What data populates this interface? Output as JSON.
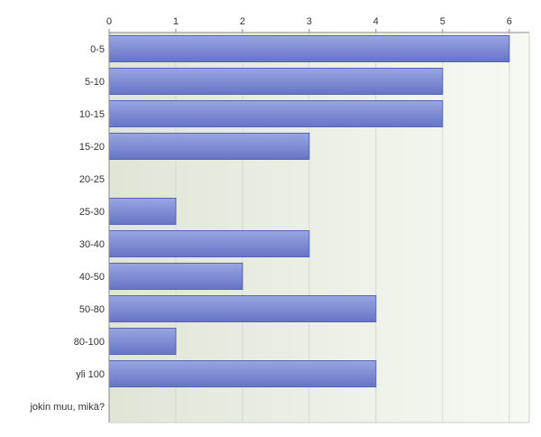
{
  "chart_data": {
    "type": "bar",
    "orientation": "horizontal",
    "categories": [
      "0-5",
      "5-10",
      "10-15",
      "15-20",
      "20-25",
      "25-30",
      "30-40",
      "40-50",
      "50-80",
      "80-100",
      "yli 100",
      "jokin muu, mikä?"
    ],
    "values": [
      6,
      5,
      5,
      3,
      0,
      1,
      3,
      2,
      4,
      1,
      4,
      0
    ],
    "xlim": [
      0,
      6.3
    ],
    "xticks": [
      0,
      1,
      2,
      3,
      4,
      5,
      6
    ],
    "tick_labels": [
      "0",
      "1",
      "2",
      "3",
      "4",
      "5",
      "6"
    ],
    "axis_position": "top",
    "grid": true,
    "colors": {
      "bar_top": "#98a6e4",
      "bar_bottom": "#6675c4",
      "bar_stroke": "#5563b0",
      "plot_bg_left": "#dfe6d6",
      "plot_bg_right": "#f7f9f3",
      "grid": "#d4dccb",
      "axis": "#8a8a8a"
    }
  }
}
